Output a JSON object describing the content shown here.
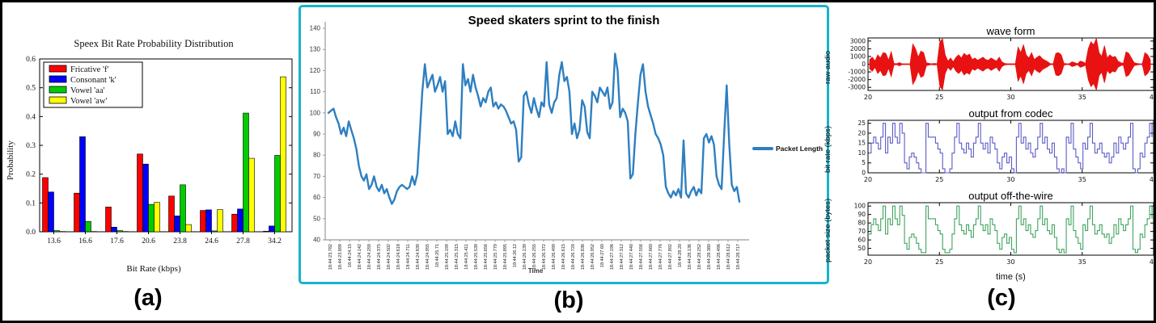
{
  "figure": {
    "panel_labels": [
      "(a)",
      "(b)",
      "(c)"
    ],
    "background": "#ffffff",
    "border_color": "#000000",
    "panel_b_border_color": "#17b3cb"
  },
  "chart_data": [
    {
      "id": "speex-bar-chart",
      "type": "bar",
      "title": "Speex Bit Rate Probability Distribution",
      "xlabel": "Bit Rate (kbps)",
      "ylabel": "Probability",
      "categories": [
        "13.6",
        "16.6",
        "17.6",
        "20.6",
        "23.8",
        "24.6",
        "27.8",
        "34.2"
      ],
      "ylim": [
        0,
        0.6
      ],
      "yticks": [
        0.0,
        0.1,
        0.2,
        0.3,
        0.4,
        0.5,
        0.6
      ],
      "grid": false,
      "legend_position": "upper-left",
      "series": [
        {
          "name": "Fricative 'f'",
          "color": "#ff0000",
          "values": [
            0.188,
            0.134,
            0.086,
            0.27,
            0.124,
            0.074,
            0.061,
            0.002
          ]
        },
        {
          "name": "Consonant 'k'",
          "color": "#0000ff",
          "values": [
            0.138,
            0.33,
            0.016,
            0.235,
            0.055,
            0.076,
            0.079,
            0.02
          ]
        },
        {
          "name": "Vowel 'aa'",
          "color": "#00cc00",
          "values": [
            0.004,
            0.036,
            0.004,
            0.095,
            0.163,
            0.003,
            0.412,
            0.265
          ]
        },
        {
          "name": "Vowel 'aw'",
          "color": "#ffff00",
          "values": [
            0.001,
            0.001,
            0.001,
            0.102,
            0.025,
            0.077,
            0.255,
            0.538
          ]
        }
      ]
    },
    {
      "id": "packet-length-line-chart",
      "type": "line",
      "title": "Speed skaters sprint to the finish",
      "xlabel": "Time",
      "legend": "Packet Length",
      "legend_position": "right",
      "line_color": "#2e7fc1",
      "ylim": [
        40,
        140
      ],
      "yticks": [
        40,
        50,
        60,
        70,
        80,
        90,
        100,
        110,
        120,
        130,
        140
      ],
      "grid": false,
      "x_tick_labels": [
        "18:44:23.782",
        "18:44:23.899",
        "18:44:24.15",
        "18:44:24.142",
        "18:44:24.259",
        "18:44:24.375",
        "18:44:24.502",
        "18:44:24.618",
        "18:44:24.711",
        "18:44:24.839",
        "18:44:24.955",
        "18:44:25.71",
        "18:44:25.199",
        "18:44:25.315",
        "18:44:25.411",
        "18:44:25.539",
        "18:44:25.656",
        "18:44:25.779",
        "18:44:25.895",
        "18:44:26.12",
        "18:44:26.139",
        "18:44:26.255",
        "18:44:26.372",
        "18:44:26.499",
        "18:44:26.615",
        "18:44:26.720",
        "18:44:26.836",
        "18:44:26.952",
        "18:44:27.60",
        "18:44:27.196",
        "18:44:27.312",
        "18:44:27.440",
        "18:44:27.556",
        "18:44:27.660",
        "18:44:27.776",
        "18:44:27.892",
        "18:44:28.20",
        "18:44:28.136",
        "18:44:28.252",
        "18:44:28.380",
        "18:44:28.496",
        "18:44:28.612",
        "18:44:28.717"
      ],
      "values": [
        100,
        101,
        102,
        98,
        95,
        90,
        93,
        89,
        96,
        92,
        88,
        83,
        75,
        70,
        68,
        71,
        64,
        66,
        70,
        65,
        63,
        66,
        62,
        64,
        60,
        57,
        59,
        63,
        65,
        66,
        65,
        64,
        65,
        70,
        66,
        71,
        90,
        110,
        123,
        112,
        115,
        118,
        110,
        113,
        117,
        110,
        115,
        90,
        92,
        89,
        96,
        90,
        88,
        123,
        113,
        116,
        110,
        118,
        112,
        108,
        103,
        107,
        105,
        110,
        112,
        103,
        105,
        102,
        104,
        103,
        101,
        98,
        95,
        96,
        92,
        77,
        79,
        108,
        110,
        104,
        100,
        107,
        102,
        98,
        105,
        103,
        124,
        104,
        100,
        105,
        107,
        118,
        124,
        115,
        117,
        110,
        90,
        95,
        88,
        92,
        106,
        103,
        91,
        88,
        110,
        108,
        105,
        112,
        110,
        108,
        112,
        102,
        105,
        128,
        120,
        98,
        102,
        100,
        96,
        69,
        71,
        90,
        105,
        118,
        123,
        110,
        103,
        99,
        95,
        90,
        88,
        85,
        80,
        65,
        62,
        60,
        63,
        61,
        64,
        60,
        87,
        62,
        60,
        63,
        65,
        61,
        64,
        62,
        88,
        90,
        86,
        89,
        85,
        70,
        66,
        64,
        90,
        113,
        85,
        66,
        63,
        65,
        58
      ]
    },
    {
      "id": "waveform-chart",
      "type": "area",
      "title": "wave form",
      "ylabel": "raw audio",
      "color": "#e81212",
      "xlim": [
        20,
        40
      ],
      "xticks": [
        20,
        25,
        30,
        35,
        40
      ],
      "ylim": [
        -3400,
        3400
      ],
      "yticks": [
        -3000,
        -2000,
        -1000,
        0,
        1000,
        2000,
        3000
      ],
      "envelope": [
        600,
        900,
        400,
        1200,
        800,
        1500,
        1400,
        500,
        1600,
        100,
        50,
        200,
        50,
        30,
        30,
        30,
        2600,
        2000,
        900,
        1700,
        1500,
        200,
        100,
        50,
        100,
        50,
        2900,
        3300,
        1200,
        400,
        800,
        300,
        900,
        1200,
        800,
        1400,
        1100,
        1300,
        600,
        800,
        500,
        700,
        900,
        600,
        500,
        800,
        600,
        400,
        900,
        300,
        100,
        50,
        50,
        50,
        50,
        2200,
        1500,
        2500,
        1200,
        800,
        1500,
        600,
        900,
        1100,
        700,
        500,
        300,
        50,
        50,
        1400,
        1500,
        1200,
        100,
        50,
        50,
        300,
        200,
        50,
        400,
        300,
        100,
        2000,
        2900,
        2500,
        3700,
        1500,
        1000,
        2400,
        800,
        1200,
        900,
        1000,
        400,
        200,
        100,
        1600,
        1400,
        800,
        200,
        100,
        50,
        30,
        1500,
        1200,
        600
      ]
    },
    {
      "id": "codec-bitrate-chart",
      "type": "line",
      "title": "output from codec",
      "ylabel": "bit rate (kbps)",
      "color": "#5b5bc8",
      "xlim": [
        20,
        40
      ],
      "xticks": [
        20,
        25,
        30,
        35,
        40
      ],
      "ylim": [
        0,
        26.5
      ],
      "yticks": [
        0,
        5,
        10,
        15,
        20,
        25
      ],
      "values": [
        10,
        15,
        18,
        15,
        12,
        18,
        25,
        10,
        18,
        15,
        25,
        18,
        15,
        25,
        20,
        5,
        2,
        8,
        10,
        8,
        5,
        2,
        0,
        0,
        25,
        18,
        18,
        18,
        15,
        12,
        10,
        2,
        0,
        0,
        2,
        10,
        18,
        25,
        15,
        12,
        10,
        15,
        12,
        8,
        15,
        18,
        25,
        15,
        12,
        15,
        10,
        18,
        15,
        12,
        5,
        2,
        8,
        10,
        5,
        8,
        2,
        0,
        18,
        25,
        15,
        18,
        12,
        15,
        10,
        8,
        12,
        18,
        25,
        15,
        18,
        12,
        10,
        15,
        8,
        2,
        0,
        2,
        0,
        18,
        15,
        25,
        12,
        8,
        5,
        2,
        15,
        12,
        18,
        25,
        15,
        10,
        12,
        15,
        10,
        8,
        10,
        5,
        8,
        15,
        10,
        18,
        15,
        12,
        15,
        18,
        25,
        2,
        0,
        2,
        10,
        8,
        15,
        18,
        25,
        18
      ]
    },
    {
      "id": "offwire-packet-chart",
      "type": "line",
      "title": "output off-the-wire",
      "ylabel": "packet size (bytes)",
      "xlabel": "time (s)",
      "color": "#3fa45f",
      "xlim": [
        20,
        40
      ],
      "xticks": [
        20,
        25,
        30,
        35,
        40
      ],
      "ylim": [
        42,
        104
      ],
      "yticks": [
        50,
        60,
        70,
        80,
        90,
        100
      ],
      "values": [
        67,
        78,
        85,
        78,
        71,
        85,
        100,
        67,
        85,
        78,
        100,
        85,
        78,
        100,
        89,
        56,
        49,
        63,
        67,
        63,
        56,
        49,
        45,
        45,
        100,
        85,
        85,
        85,
        78,
        71,
        67,
        49,
        45,
        45,
        49,
        67,
        85,
        100,
        78,
        71,
        67,
        78,
        71,
        63,
        78,
        85,
        100,
        78,
        71,
        78,
        67,
        85,
        78,
        71,
        56,
        49,
        63,
        67,
        56,
        63,
        49,
        45,
        85,
        100,
        78,
        85,
        71,
        78,
        67,
        63,
        71,
        85,
        100,
        78,
        85,
        71,
        67,
        78,
        63,
        49,
        45,
        49,
        45,
        85,
        78,
        100,
        71,
        63,
        56,
        49,
        78,
        71,
        85,
        100,
        78,
        67,
        71,
        78,
        67,
        63,
        67,
        56,
        63,
        78,
        67,
        85,
        78,
        71,
        78,
        85,
        100,
        49,
        45,
        49,
        67,
        63,
        78,
        85,
        100,
        85
      ]
    }
  ]
}
